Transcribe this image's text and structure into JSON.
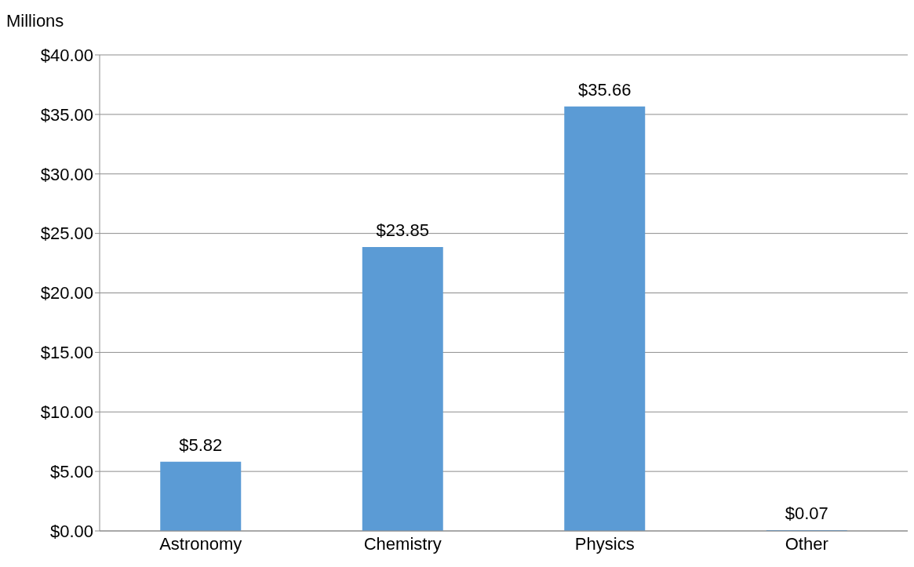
{
  "chart_data": {
    "type": "bar",
    "ylabel": "Millions",
    "categories": [
      "Astronomy",
      "Chemistry",
      "Physics",
      "Other"
    ],
    "values": [
      5.82,
      23.85,
      35.66,
      0.07
    ],
    "value_labels": [
      "$5.82",
      "$23.85",
      "$35.66",
      "$0.07"
    ],
    "color": "#5b9bd5",
    "ylim": [
      0,
      40
    ],
    "yticks": [
      {
        "value": 0,
        "label": "$0.00"
      },
      {
        "value": 5,
        "label": "$5.00"
      },
      {
        "value": 10,
        "label": "$10.00"
      },
      {
        "value": 15,
        "label": "$15.00"
      },
      {
        "value": 20,
        "label": "$20.00"
      },
      {
        "value": 25,
        "label": "$25.00"
      },
      {
        "value": 30,
        "label": "$30.00"
      },
      {
        "value": 35,
        "label": "$35.00"
      },
      {
        "value": 40,
        "label": "$40.00"
      }
    ],
    "grid": "y",
    "legend": false
  }
}
